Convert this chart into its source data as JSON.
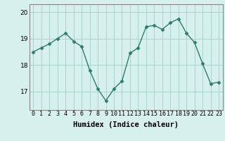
{
  "x": [
    0,
    1,
    2,
    3,
    4,
    5,
    6,
    7,
    8,
    9,
    10,
    11,
    12,
    13,
    14,
    15,
    16,
    17,
    18,
    19,
    20,
    21,
    22,
    23
  ],
  "y": [
    18.5,
    18.65,
    18.8,
    19.0,
    19.2,
    18.9,
    18.7,
    17.8,
    17.1,
    16.65,
    17.1,
    17.4,
    18.45,
    18.65,
    19.45,
    19.5,
    19.35,
    19.6,
    19.75,
    19.2,
    18.85,
    18.05,
    17.3,
    17.35
  ],
  "line_color": "#2d7d6e",
  "marker": "D",
  "markersize": 2.5,
  "linewidth": 1.0,
  "background_color": "#d6f0ee",
  "grid_color": "#aad4ce",
  "xlabel": "Humidex (Indice chaleur)",
  "xlabel_fontsize": 7.5,
  "tick_fontsize": 6.0,
  "ytick_fontsize": 6.5,
  "yticks": [
    17,
    18,
    19,
    20
  ],
  "ylim": [
    16.3,
    20.3
  ],
  "xlim": [
    -0.5,
    23.5
  ],
  "spine_color": "#888888"
}
